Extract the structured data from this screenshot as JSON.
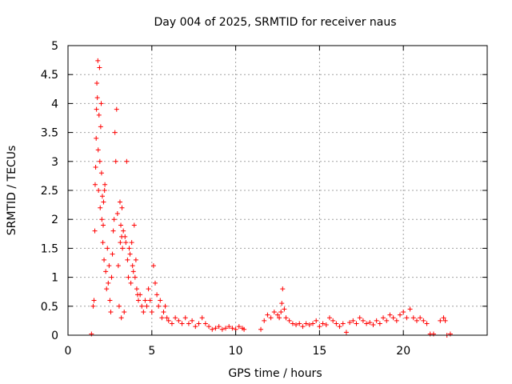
{
  "chart_data": {
    "type": "scatter",
    "title": "Day 004 of 2025, SRMTID for receiver naus",
    "xlabel": "GPS time / hours",
    "ylabel": "SRMTID / TECUs",
    "xlim": [
      0,
      25
    ],
    "ylim": [
      0,
      5
    ],
    "xticks": [
      0,
      5,
      10,
      15,
      20
    ],
    "xtick_labels": [
      "0",
      "5",
      "10",
      "15",
      "20"
    ],
    "yticks": [
      0,
      0.5,
      1,
      1.5,
      2,
      2.5,
      3,
      3.5,
      4,
      4.5,
      5
    ],
    "ytick_labels": [
      "0",
      "0.5",
      "1",
      "1.5",
      "2",
      "2.5",
      "3",
      "3.5",
      "4",
      "4.5",
      "5"
    ],
    "grid": true,
    "marker": "+",
    "series": [
      {
        "name": "SRMTID",
        "color": "#ff0000",
        "x": [
          1.4,
          1.5,
          1.55,
          1.6,
          1.62,
          1.65,
          1.68,
          1.7,
          1.72,
          1.75,
          1.78,
          1.8,
          1.82,
          1.85,
          1.88,
          1.9,
          1.92,
          1.95,
          1.98,
          2.0,
          2.02,
          2.05,
          2.08,
          2.1,
          2.12,
          2.15,
          2.18,
          2.2,
          2.25,
          2.3,
          2.35,
          2.4,
          2.45,
          2.5,
          2.55,
          2.6,
          2.65,
          2.7,
          2.75,
          2.8,
          2.85,
          2.9,
          2.95,
          3.0,
          3.05,
          3.1,
          3.12,
          3.15,
          3.18,
          3.2,
          3.22,
          3.25,
          3.3,
          3.35,
          3.4,
          3.45,
          3.5,
          3.55,
          3.6,
          3.65,
          3.7,
          3.75,
          3.8,
          3.85,
          3.9,
          3.95,
          4.0,
          4.05,
          4.1,
          4.15,
          4.2,
          4.3,
          4.4,
          4.5,
          4.6,
          4.7,
          4.8,
          4.9,
          5.0,
          5.1,
          5.2,
          5.3,
          5.4,
          5.5,
          5.6,
          5.7,
          5.8,
          5.9,
          6.0,
          6.2,
          6.4,
          6.6,
          6.8,
          7.0,
          7.2,
          7.4,
          7.6,
          7.8,
          8.0,
          8.2,
          8.4,
          8.6,
          8.8,
          9.0,
          9.2,
          9.4,
          9.6,
          9.8,
          10.0,
          10.2,
          10.4,
          10.5,
          11.5,
          11.7,
          11.9,
          12.1,
          12.3,
          12.5,
          12.6,
          12.7,
          12.75,
          12.8,
          12.9,
          13.0,
          13.2,
          13.4,
          13.6,
          13.8,
          14.0,
          14.2,
          14.4,
          14.6,
          14.8,
          15.0,
          15.2,
          15.4,
          15.6,
          15.8,
          16.0,
          16.2,
          16.4,
          16.6,
          16.8,
          17.0,
          17.2,
          17.4,
          17.6,
          17.8,
          18.0,
          18.2,
          18.4,
          18.6,
          18.8,
          19.0,
          19.2,
          19.4,
          19.6,
          19.8,
          20.0,
          20.2,
          20.4,
          20.6,
          20.8,
          21.0,
          21.2,
          21.4,
          21.6,
          21.8,
          22.2,
          22.4,
          22.6,
          22.5,
          22.8
        ],
        "y": [
          0.02,
          0.5,
          0.6,
          1.8,
          2.6,
          2.9,
          3.4,
          3.9,
          4.35,
          4.1,
          4.74,
          3.2,
          2.5,
          3.8,
          4.62,
          3.0,
          2.2,
          3.6,
          4.0,
          2.8,
          2.0,
          2.4,
          1.6,
          1.9,
          2.3,
          1.3,
          2.5,
          2.6,
          1.1,
          0.8,
          1.5,
          0.9,
          1.2,
          0.6,
          0.4,
          1.0,
          1.4,
          1.8,
          2.0,
          3.5,
          3.0,
          3.9,
          2.1,
          1.2,
          0.5,
          2.3,
          1.6,
          1.9,
          0.3,
          1.7,
          2.2,
          1.5,
          1.8,
          0.4,
          1.7,
          1.6,
          3.0,
          1.3,
          1.0,
          1.5,
          1.4,
          0.9,
          1.6,
          1.2,
          1.1,
          1.9,
          1.0,
          1.3,
          0.8,
          0.7,
          0.6,
          0.7,
          0.5,
          0.4,
          0.6,
          0.5,
          0.8,
          0.6,
          0.4,
          1.2,
          0.9,
          0.7,
          0.5,
          0.6,
          0.3,
          0.4,
          0.5,
          0.3,
          0.25,
          0.2,
          0.3,
          0.25,
          0.2,
          0.3,
          0.2,
          0.25,
          0.15,
          0.2,
          0.3,
          0.2,
          0.15,
          0.1,
          0.12,
          0.15,
          0.1,
          0.12,
          0.15,
          0.12,
          0.1,
          0.15,
          0.12,
          0.1,
          0.1,
          0.25,
          0.35,
          0.3,
          0.4,
          0.35,
          0.3,
          0.4,
          0.55,
          0.8,
          0.45,
          0.3,
          0.25,
          0.2,
          0.18,
          0.2,
          0.15,
          0.2,
          0.18,
          0.2,
          0.25,
          0.15,
          0.2,
          0.18,
          0.3,
          0.25,
          0.2,
          0.15,
          0.2,
          0.05,
          0.22,
          0.25,
          0.2,
          0.3,
          0.25,
          0.2,
          0.22,
          0.18,
          0.25,
          0.2,
          0.3,
          0.25,
          0.35,
          0.3,
          0.25,
          0.35,
          0.4,
          0.3,
          0.45,
          0.3,
          0.25,
          0.3,
          0.25,
          0.2,
          0.02,
          0.02,
          0.25,
          0.3,
          0.0,
          0.25,
          0.02
        ]
      }
    ]
  }
}
